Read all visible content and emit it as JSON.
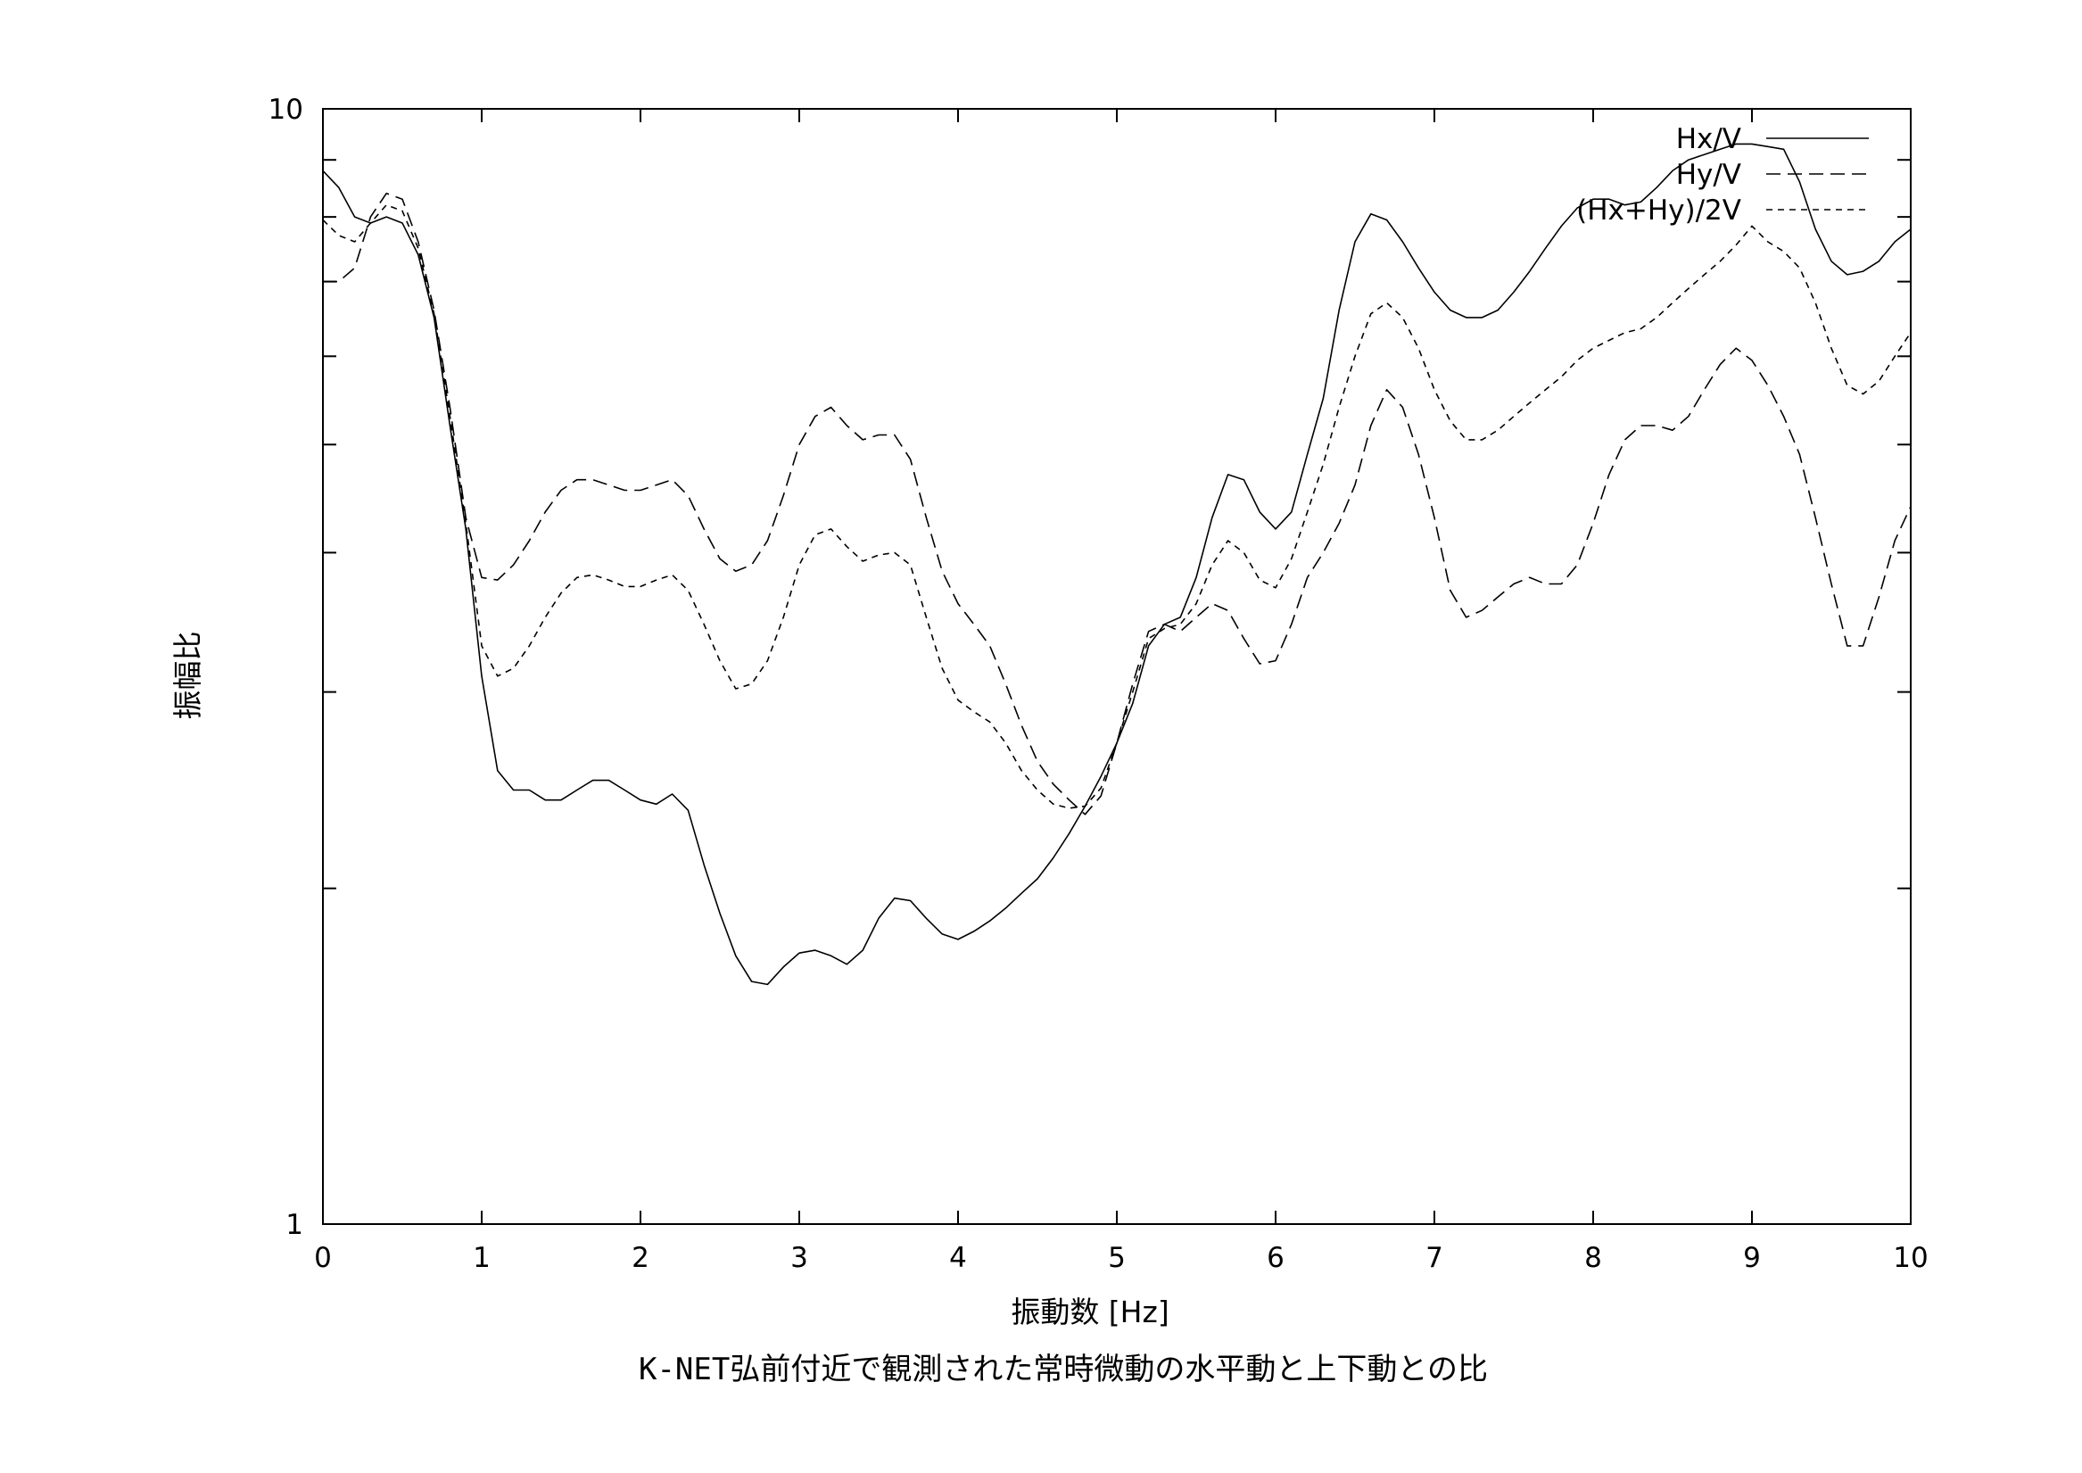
{
  "chart_data": {
    "type": "line",
    "caption": "K-NET弘前付近で観測された常時微動の水平動と上下動との比",
    "xlabel": "振動数 [Hz]",
    "ylabel": "振幅比",
    "xlim": [
      0,
      10
    ],
    "ylim": [
      1,
      10
    ],
    "y_scale": "log",
    "grid": false,
    "legend_position": "top-right",
    "x_ticks": [
      0,
      1,
      2,
      3,
      4,
      5,
      6,
      7,
      8,
      9,
      10
    ],
    "x_tick_labels": [
      "0",
      "1",
      "2",
      "3",
      "4",
      "5",
      "6",
      "7",
      "8",
      "9",
      "10"
    ],
    "y_tick_labels": [
      {
        "value": 1,
        "label": "1"
      },
      {
        "value": 10,
        "label": "10"
      }
    ],
    "y_minor_ticks": [
      2,
      3,
      4,
      5,
      6,
      7,
      8,
      9
    ],
    "series": [
      {
        "name": "Hx/V",
        "dash": "solid",
        "x": [
          0.0,
          0.1,
          0.2,
          0.3,
          0.4,
          0.5,
          0.6,
          0.7,
          0.8,
          0.9,
          1.0,
          1.1,
          1.2,
          1.3,
          1.4,
          1.5,
          1.6,
          1.7,
          1.8,
          1.9,
          2.0,
          2.1,
          2.2,
          2.3,
          2.4,
          2.5,
          2.6,
          2.7,
          2.8,
          2.9,
          3.0,
          3.1,
          3.2,
          3.3,
          3.4,
          3.5,
          3.6,
          3.7,
          3.8,
          3.9,
          4.0,
          4.1,
          4.2,
          4.3,
          4.4,
          4.5,
          4.6,
          4.7,
          4.8,
          4.9,
          5.0,
          5.1,
          5.2,
          5.3,
          5.4,
          5.5,
          5.6,
          5.7,
          5.8,
          5.9,
          6.0,
          6.1,
          6.2,
          6.3,
          6.4,
          6.5,
          6.6,
          6.7,
          6.8,
          6.9,
          7.0,
          7.1,
          7.2,
          7.3,
          7.4,
          7.5,
          7.6,
          7.7,
          7.8,
          7.9,
          8.0,
          8.1,
          8.2,
          8.3,
          8.4,
          8.5,
          8.6,
          8.7,
          8.8,
          8.9,
          9.0,
          9.1,
          9.2,
          9.3,
          9.4,
          9.5,
          9.6,
          9.7,
          9.8,
          9.9,
          10.0
        ],
        "y": [
          8.8,
          8.5,
          8.0,
          7.9,
          8.0,
          7.9,
          7.4,
          6.5,
          5.2,
          4.2,
          3.1,
          2.55,
          2.45,
          2.45,
          2.4,
          2.4,
          2.45,
          2.5,
          2.5,
          2.45,
          2.4,
          2.38,
          2.43,
          2.35,
          2.1,
          1.9,
          1.74,
          1.65,
          1.64,
          1.7,
          1.75,
          1.76,
          1.74,
          1.71,
          1.76,
          1.88,
          1.96,
          1.95,
          1.88,
          1.82,
          1.8,
          1.83,
          1.87,
          1.92,
          1.98,
          2.04,
          2.13,
          2.24,
          2.37,
          2.52,
          2.7,
          2.93,
          3.3,
          3.45,
          3.5,
          3.8,
          4.3,
          4.7,
          4.65,
          4.35,
          4.2,
          4.35,
          4.9,
          5.5,
          6.6,
          7.6,
          8.05,
          7.95,
          7.6,
          7.2,
          6.85,
          6.6,
          6.5,
          6.5,
          6.6,
          6.85,
          7.15,
          7.5,
          7.85,
          8.15,
          8.3,
          8.3,
          8.2,
          8.25,
          8.5,
          8.8,
          9.0,
          9.1,
          9.2,
          9.3,
          9.3,
          9.25,
          9.2,
          8.6,
          7.8,
          7.3,
          7.1,
          7.15,
          7.3,
          7.6,
          7.8
        ]
      },
      {
        "name": "Hy/V",
        "dash": "dashed",
        "x": [
          0.0,
          0.1,
          0.2,
          0.3,
          0.4,
          0.5,
          0.6,
          0.7,
          0.8,
          0.9,
          1.0,
          1.1,
          1.2,
          1.3,
          1.4,
          1.5,
          1.6,
          1.7,
          1.8,
          1.9,
          2.0,
          2.1,
          2.2,
          2.3,
          2.4,
          2.5,
          2.6,
          2.7,
          2.8,
          2.9,
          3.0,
          3.1,
          3.2,
          3.3,
          3.4,
          3.5,
          3.6,
          3.7,
          3.8,
          3.9,
          4.0,
          4.1,
          4.2,
          4.3,
          4.4,
          4.5,
          4.6,
          4.7,
          4.8,
          4.9,
          5.0,
          5.1,
          5.2,
          5.3,
          5.4,
          5.5,
          5.6,
          5.7,
          5.8,
          5.9,
          6.0,
          6.1,
          6.2,
          6.3,
          6.4,
          6.5,
          6.6,
          6.7,
          6.8,
          6.9,
          7.0,
          7.1,
          7.2,
          7.3,
          7.4,
          7.5,
          7.6,
          7.7,
          7.8,
          7.9,
          8.0,
          8.1,
          8.2,
          8.3,
          8.4,
          8.5,
          8.6,
          8.7,
          8.8,
          8.9,
          9.0,
          9.1,
          9.2,
          9.3,
          9.4,
          9.5,
          9.6,
          9.7,
          9.8,
          9.9,
          10.0
        ],
        "y": [
          7.0,
          7.0,
          7.2,
          8.0,
          8.4,
          8.3,
          7.6,
          6.6,
          5.4,
          4.3,
          3.8,
          3.78,
          3.9,
          4.1,
          4.35,
          4.55,
          4.65,
          4.65,
          4.6,
          4.55,
          4.55,
          4.6,
          4.65,
          4.5,
          4.2,
          3.95,
          3.85,
          3.9,
          4.1,
          4.5,
          5.0,
          5.3,
          5.4,
          5.2,
          5.05,
          5.1,
          5.1,
          4.85,
          4.3,
          3.85,
          3.6,
          3.45,
          3.3,
          3.05,
          2.8,
          2.6,
          2.48,
          2.4,
          2.33,
          2.42,
          2.7,
          3.05,
          3.4,
          3.45,
          3.4,
          3.5,
          3.6,
          3.55,
          3.35,
          3.18,
          3.2,
          3.45,
          3.8,
          4.0,
          4.25,
          4.6,
          5.2,
          5.6,
          5.4,
          4.9,
          4.3,
          3.7,
          3.5,
          3.55,
          3.65,
          3.75,
          3.8,
          3.75,
          3.75,
          3.9,
          4.25,
          4.7,
          5.05,
          5.2,
          5.2,
          5.15,
          5.3,
          5.6,
          5.9,
          6.1,
          5.95,
          5.65,
          5.3,
          4.9,
          4.3,
          3.75,
          3.3,
          3.3,
          3.65,
          4.1,
          4.4
        ]
      },
      {
        "name": "(Hx+Hy)/2V",
        "dash": "dotted",
        "x": [
          0.0,
          0.1,
          0.2,
          0.3,
          0.4,
          0.5,
          0.6,
          0.7,
          0.8,
          0.9,
          1.0,
          1.1,
          1.2,
          1.3,
          1.4,
          1.5,
          1.6,
          1.7,
          1.8,
          1.9,
          2.0,
          2.1,
          2.2,
          2.3,
          2.4,
          2.5,
          2.6,
          2.7,
          2.8,
          2.9,
          3.0,
          3.1,
          3.2,
          3.3,
          3.4,
          3.5,
          3.6,
          3.7,
          3.8,
          3.9,
          4.0,
          4.1,
          4.2,
          4.3,
          4.4,
          4.5,
          4.6,
          4.7,
          4.8,
          4.9,
          5.0,
          5.1,
          5.2,
          5.3,
          5.4,
          5.5,
          5.6,
          5.7,
          5.8,
          5.9,
          6.0,
          6.1,
          6.2,
          6.3,
          6.4,
          6.5,
          6.6,
          6.7,
          6.8,
          6.9,
          7.0,
          7.1,
          7.2,
          7.3,
          7.4,
          7.5,
          7.6,
          7.7,
          7.8,
          7.9,
          8.0,
          8.1,
          8.2,
          8.3,
          8.4,
          8.5,
          8.6,
          8.7,
          8.8,
          8.9,
          9.0,
          9.1,
          9.2,
          9.3,
          9.4,
          9.5,
          9.6,
          9.7,
          9.8,
          9.9,
          10.0
        ],
        "y": [
          7.95,
          7.7,
          7.6,
          7.9,
          8.2,
          8.1,
          7.5,
          6.55,
          5.3,
          4.25,
          3.3,
          3.1,
          3.15,
          3.3,
          3.5,
          3.68,
          3.8,
          3.82,
          3.78,
          3.73,
          3.73,
          3.78,
          3.82,
          3.7,
          3.45,
          3.2,
          3.02,
          3.05,
          3.2,
          3.5,
          3.9,
          4.15,
          4.2,
          4.05,
          3.93,
          3.98,
          4.0,
          3.9,
          3.5,
          3.15,
          2.95,
          2.88,
          2.82,
          2.7,
          2.55,
          2.45,
          2.38,
          2.36,
          2.37,
          2.46,
          2.7,
          3.0,
          3.35,
          3.42,
          3.45,
          3.6,
          3.9,
          4.1,
          4.0,
          3.78,
          3.72,
          3.95,
          4.35,
          4.8,
          5.4,
          6.0,
          6.55,
          6.7,
          6.5,
          6.1,
          5.6,
          5.25,
          5.05,
          5.05,
          5.15,
          5.3,
          5.45,
          5.6,
          5.75,
          5.95,
          6.1,
          6.2,
          6.3,
          6.35,
          6.5,
          6.7,
          6.9,
          7.1,
          7.3,
          7.55,
          7.85,
          7.6,
          7.45,
          7.2,
          6.7,
          6.1,
          5.65,
          5.55,
          5.7,
          6.0,
          6.3
        ]
      }
    ]
  }
}
